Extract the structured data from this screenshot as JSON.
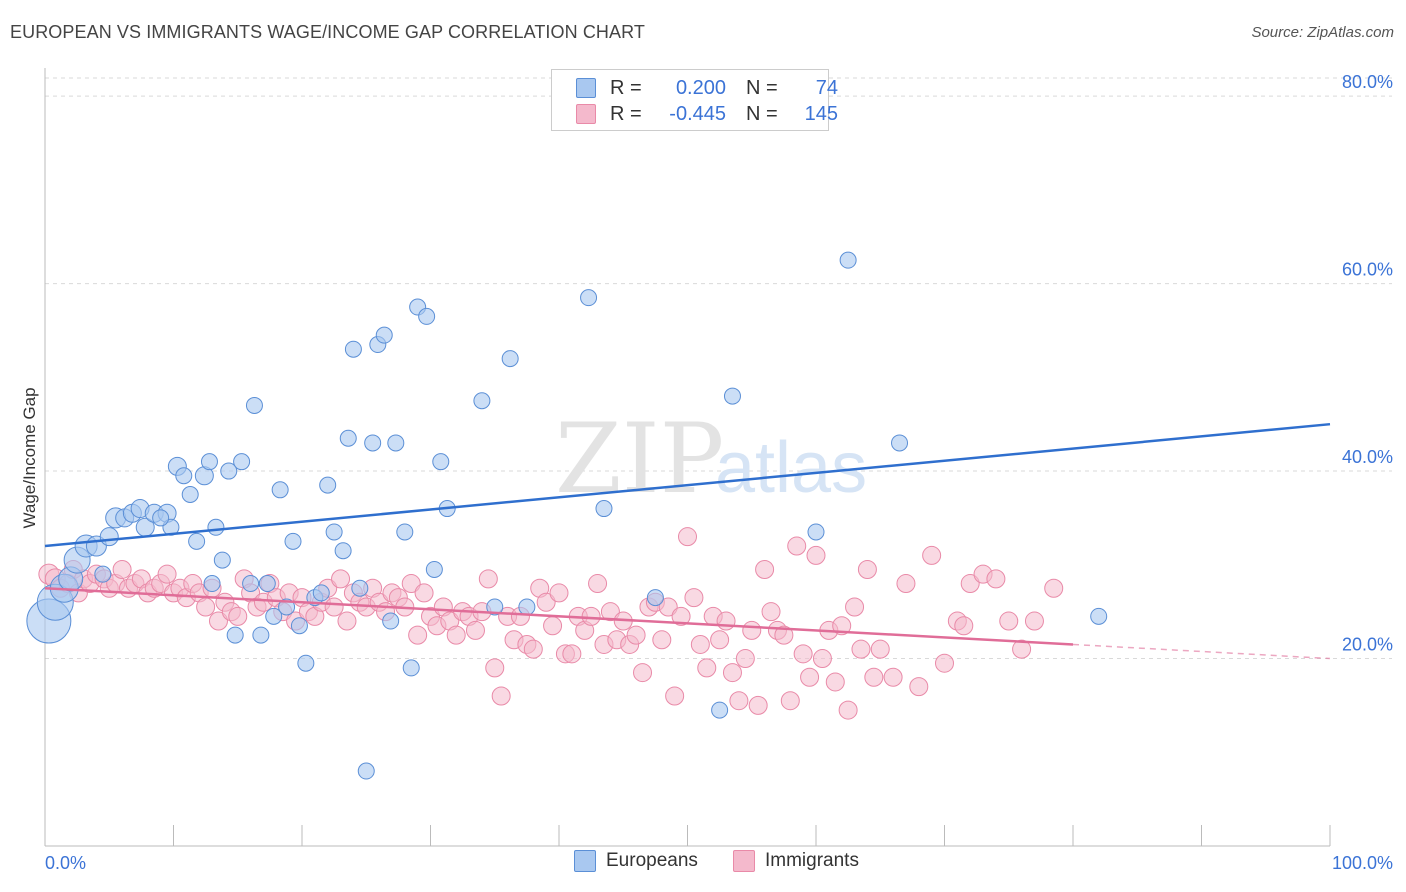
{
  "title": "EUROPEAN VS IMMIGRANTS WAGE/INCOME GAP CORRELATION CHART",
  "source": "Source: ZipAtlas.com",
  "watermark": {
    "zip": "ZIP",
    "atlas": "atlas"
  },
  "colors": {
    "blue_fill": "#a9c8f0",
    "blue_stroke": "#5b8fd6",
    "blue_line": "#2f6fce",
    "pink_fill": "#f4b9cc",
    "pink_stroke": "#e98aa8",
    "pink_line": "#e06d98",
    "tick_label": "#3b73d6",
    "grid": "#d9d9d9"
  },
  "legend": {
    "rows": [
      {
        "r_label": "R =",
        "r_value": "0.200",
        "n_label": "N =",
        "n_value": "74"
      },
      {
        "r_label": "R =",
        "r_value": "-0.445",
        "n_label": "N =",
        "n_value": "145"
      }
    ],
    "bottom": [
      "Europeans",
      "Immigrants"
    ]
  },
  "chart_data": {
    "type": "scatter",
    "title": "EUROPEAN VS IMMIGRANTS WAGE/INCOME GAP CORRELATION CHART",
    "xlabel": "",
    "ylabel": "Wage/Income Gap",
    "xlim": [
      0,
      100
    ],
    "ylim": [
      0,
      83
    ],
    "x_tick_labels": [
      "0.0%",
      "100.0%"
    ],
    "y_ticks": [
      20,
      40,
      60,
      80
    ],
    "y_tick_labels": [
      "20.0%",
      "40.0%",
      "60.0%",
      "80.0%"
    ],
    "grid": true,
    "legend_position": "top-center",
    "series": [
      {
        "name": "Europeans",
        "trend": [
          [
            0,
            32.0
          ],
          [
            100,
            45.0
          ]
        ],
        "points": [
          [
            0.3,
            24.0,
            22
          ],
          [
            0.8,
            26.0,
            18
          ],
          [
            1.5,
            27.5,
            14
          ],
          [
            2.0,
            28.5,
            12
          ],
          [
            2.5,
            30.5,
            13
          ],
          [
            3.2,
            32.0,
            11
          ],
          [
            4.0,
            32.0,
            10
          ],
          [
            5.0,
            33.0,
            9
          ],
          [
            5.5,
            35.0,
            10
          ],
          [
            6.2,
            35.0,
            9
          ],
          [
            6.8,
            35.5,
            9
          ],
          [
            7.4,
            36.0,
            9
          ],
          [
            7.8,
            34.0,
            9
          ],
          [
            8.5,
            35.5,
            9
          ],
          [
            9.5,
            35.5,
            9
          ],
          [
            9.8,
            34.0,
            8
          ],
          [
            10.3,
            40.5,
            9
          ],
          [
            10.8,
            39.5,
            8
          ],
          [
            11.3,
            37.5,
            8
          ],
          [
            11.8,
            32.5,
            8
          ],
          [
            12.4,
            39.5,
            9
          ],
          [
            12.8,
            41.0,
            8
          ],
          [
            13.3,
            34.0,
            8
          ],
          [
            13.8,
            30.5,
            8
          ],
          [
            14.3,
            40.0,
            8
          ],
          [
            14.8,
            22.5,
            8
          ],
          [
            15.3,
            41.0,
            8
          ],
          [
            16.0,
            28.0,
            8
          ],
          [
            16.3,
            47.0,
            8
          ],
          [
            16.8,
            22.5,
            8
          ],
          [
            17.3,
            28.0,
            8
          ],
          [
            17.8,
            24.5,
            8
          ],
          [
            18.3,
            38.0,
            8
          ],
          [
            18.8,
            25.5,
            8
          ],
          [
            19.3,
            32.5,
            8
          ],
          [
            19.8,
            23.5,
            8
          ],
          [
            20.3,
            19.5,
            8
          ],
          [
            21.0,
            26.5,
            8
          ],
          [
            21.5,
            27.0,
            8
          ],
          [
            22.0,
            38.5,
            8
          ],
          [
            22.5,
            33.5,
            8
          ],
          [
            23.2,
            31.5,
            8
          ],
          [
            23.6,
            43.5,
            8
          ],
          [
            24.0,
            53.0,
            8
          ],
          [
            24.5,
            27.5,
            8
          ],
          [
            25.0,
            8.0,
            8
          ],
          [
            25.5,
            43.0,
            8
          ],
          [
            25.9,
            53.5,
            8
          ],
          [
            26.4,
            54.5,
            8
          ],
          [
            26.9,
            24.0,
            8
          ],
          [
            27.3,
            43.0,
            8
          ],
          [
            28.0,
            33.5,
            8
          ],
          [
            28.5,
            19.0,
            8
          ],
          [
            29.0,
            57.5,
            8
          ],
          [
            29.7,
            56.5,
            8
          ],
          [
            30.3,
            29.5,
            8
          ],
          [
            30.8,
            41.0,
            8
          ],
          [
            31.3,
            36.0,
            8
          ],
          [
            34.0,
            47.5,
            8
          ],
          [
            35.0,
            25.5,
            8
          ],
          [
            36.2,
            52.0,
            8
          ],
          [
            37.5,
            25.5,
            8
          ],
          [
            42.3,
            58.5,
            8
          ],
          [
            43.5,
            36.0,
            8
          ],
          [
            47.5,
            26.5,
            8
          ],
          [
            52.5,
            14.5,
            8
          ],
          [
            53.5,
            48.0,
            8
          ],
          [
            60.0,
            33.5,
            8
          ],
          [
            62.5,
            62.5,
            8
          ],
          [
            66.5,
            43.0,
            8
          ],
          [
            82.0,
            24.5,
            8
          ],
          [
            9.0,
            35.0,
            8
          ],
          [
            4.5,
            29.0,
            8
          ],
          [
            13.0,
            28.0,
            8
          ]
        ]
      },
      {
        "name": "Immigrants",
        "trend": [
          [
            0,
            27.5
          ],
          [
            80,
            21.5
          ]
        ],
        "trend_dashed": [
          [
            80,
            21.5
          ],
          [
            100,
            20.0
          ]
        ],
        "points": [
          [
            0.3,
            29.0,
            10
          ],
          [
            0.8,
            28.5,
            10
          ],
          [
            1.2,
            27.5,
            9
          ],
          [
            1.8,
            28.0,
            9
          ],
          [
            2.2,
            29.5,
            9
          ],
          [
            2.6,
            27.0,
            9
          ],
          [
            3.0,
            28.5,
            9
          ],
          [
            3.5,
            28.0,
            9
          ],
          [
            4.0,
            29.0,
            9
          ],
          [
            4.6,
            28.5,
            9
          ],
          [
            5.0,
            27.5,
            9
          ],
          [
            5.5,
            28.0,
            9
          ],
          [
            6.0,
            29.5,
            9
          ],
          [
            6.5,
            27.5,
            9
          ],
          [
            7.0,
            28.0,
            9
          ],
          [
            7.5,
            28.5,
            9
          ],
          [
            8.0,
            27.0,
            9
          ],
          [
            8.5,
            27.5,
            9
          ],
          [
            9.0,
            28.0,
            9
          ],
          [
            9.5,
            29.0,
            9
          ],
          [
            10.0,
            27.0,
            9
          ],
          [
            10.5,
            27.5,
            9
          ],
          [
            11.0,
            26.5,
            9
          ],
          [
            11.5,
            28.0,
            9
          ],
          [
            12.0,
            27.0,
            9
          ],
          [
            12.5,
            25.5,
            9
          ],
          [
            13.0,
            27.5,
            9
          ],
          [
            13.5,
            24.0,
            9
          ],
          [
            14.0,
            26.0,
            9
          ],
          [
            14.5,
            25.0,
            9
          ],
          [
            15.0,
            24.5,
            9
          ],
          [
            15.5,
            28.5,
            9
          ],
          [
            16.0,
            27.0,
            9
          ],
          [
            16.5,
            25.5,
            9
          ],
          [
            17.0,
            26.0,
            9
          ],
          [
            17.5,
            28.0,
            9
          ],
          [
            18.0,
            26.5,
            9
          ],
          [
            18.5,
            25.0,
            9
          ],
          [
            19.0,
            27.0,
            9
          ],
          [
            19.5,
            24.0,
            9
          ],
          [
            20.0,
            26.5,
            9
          ],
          [
            20.5,
            25.0,
            9
          ],
          [
            21.0,
            24.5,
            9
          ],
          [
            21.5,
            26.0,
            9
          ],
          [
            22.0,
            27.5,
            9
          ],
          [
            22.5,
            25.5,
            9
          ],
          [
            23.0,
            28.5,
            9
          ],
          [
            23.5,
            24.0,
            9
          ],
          [
            24.0,
            27.0,
            9
          ],
          [
            24.5,
            26.0,
            9
          ],
          [
            25.0,
            25.5,
            9
          ],
          [
            25.5,
            27.5,
            9
          ],
          [
            26.0,
            26.0,
            9
          ],
          [
            26.5,
            25.0,
            9
          ],
          [
            27.0,
            27.0,
            9
          ],
          [
            27.5,
            26.5,
            9
          ],
          [
            28.0,
            25.5,
            9
          ],
          [
            28.5,
            28.0,
            9
          ],
          [
            29.0,
            22.5,
            9
          ],
          [
            29.5,
            27.0,
            9
          ],
          [
            30.0,
            24.5,
            9
          ],
          [
            30.5,
            23.5,
            9
          ],
          [
            31.0,
            25.5,
            9
          ],
          [
            31.5,
            24.0,
            9
          ],
          [
            32.0,
            22.5,
            9
          ],
          [
            32.5,
            25.0,
            9
          ],
          [
            33.0,
            24.5,
            9
          ],
          [
            33.5,
            23.0,
            9
          ],
          [
            34.0,
            25.0,
            9
          ],
          [
            34.5,
            28.5,
            9
          ],
          [
            35.0,
            19.0,
            9
          ],
          [
            35.5,
            16.0,
            9
          ],
          [
            36.0,
            24.5,
            9
          ],
          [
            36.5,
            22.0,
            9
          ],
          [
            37.0,
            24.5,
            9
          ],
          [
            37.5,
            21.5,
            9
          ],
          [
            38.0,
            21.0,
            9
          ],
          [
            38.5,
            27.5,
            9
          ],
          [
            39.0,
            26.0,
            9
          ],
          [
            39.5,
            23.5,
            9
          ],
          [
            40.0,
            27.0,
            9
          ],
          [
            40.5,
            20.5,
            9
          ],
          [
            41.0,
            20.5,
            9
          ],
          [
            41.5,
            24.5,
            9
          ],
          [
            42.0,
            23.0,
            9
          ],
          [
            42.5,
            24.5,
            9
          ],
          [
            43.0,
            28.0,
            9
          ],
          [
            43.5,
            21.5,
            9
          ],
          [
            44.0,
            25.0,
            9
          ],
          [
            44.5,
            22.0,
            9
          ],
          [
            45.0,
            24.0,
            9
          ],
          [
            45.5,
            21.5,
            9
          ],
          [
            46.0,
            22.5,
            9
          ],
          [
            46.5,
            18.5,
            9
          ],
          [
            47.0,
            25.5,
            9
          ],
          [
            47.5,
            26.0,
            9
          ],
          [
            48.0,
            22.0,
            9
          ],
          [
            48.5,
            25.5,
            9
          ],
          [
            49.0,
            16.0,
            9
          ],
          [
            49.5,
            24.5,
            9
          ],
          [
            50.0,
            33.0,
            9
          ],
          [
            50.5,
            26.5,
            9
          ],
          [
            51.0,
            21.5,
            9
          ],
          [
            51.5,
            19.0,
            9
          ],
          [
            52.0,
            24.5,
            9
          ],
          [
            52.5,
            22.0,
            9
          ],
          [
            53.0,
            24.0,
            9
          ],
          [
            53.5,
            18.5,
            9
          ],
          [
            54.0,
            15.5,
            9
          ],
          [
            54.5,
            20.0,
            9
          ],
          [
            55.0,
            23.0,
            9
          ],
          [
            55.5,
            15.0,
            9
          ],
          [
            56.0,
            29.5,
            9
          ],
          [
            56.5,
            25.0,
            9
          ],
          [
            57.0,
            23.0,
            9
          ],
          [
            57.5,
            22.5,
            9
          ],
          [
            58.0,
            15.5,
            9
          ],
          [
            58.5,
            32.0,
            9
          ],
          [
            59.0,
            20.5,
            9
          ],
          [
            59.5,
            18.0,
            9
          ],
          [
            60.0,
            31.0,
            9
          ],
          [
            60.5,
            20.0,
            9
          ],
          [
            61.0,
            23.0,
            9
          ],
          [
            61.5,
            17.5,
            9
          ],
          [
            62.0,
            23.5,
            9
          ],
          [
            62.5,
            14.5,
            9
          ],
          [
            63.0,
            25.5,
            9
          ],
          [
            63.5,
            21.0,
            9
          ],
          [
            64.0,
            29.5,
            9
          ],
          [
            64.5,
            18.0,
            9
          ],
          [
            65.0,
            21.0,
            9
          ],
          [
            66.0,
            18.0,
            9
          ],
          [
            67.0,
            28.0,
            9
          ],
          [
            68.0,
            17.0,
            9
          ],
          [
            69.0,
            31.0,
            9
          ],
          [
            70.0,
            19.5,
            9
          ],
          [
            71.0,
            24.0,
            9
          ],
          [
            72.0,
            28.0,
            9
          ],
          [
            73.0,
            29.0,
            9
          ],
          [
            74.0,
            28.5,
            9
          ],
          [
            75.0,
            24.0,
            9
          ],
          [
            76.0,
            21.0,
            9
          ],
          [
            77.0,
            24.0,
            9
          ],
          [
            78.5,
            27.5,
            9
          ],
          [
            71.5,
            23.5,
            9
          ]
        ]
      }
    ]
  }
}
